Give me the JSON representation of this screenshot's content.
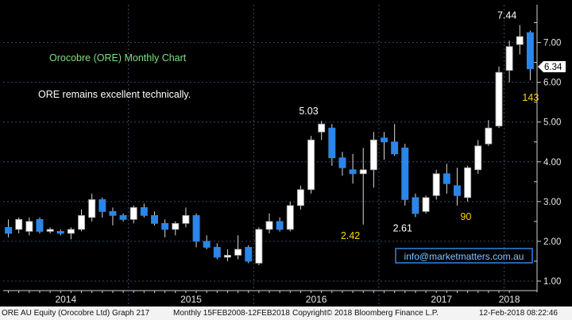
{
  "colors": {
    "background": "#000000",
    "grid": "#3a4a63",
    "axis_text": "#e6e6e6",
    "up_candle_fill": "#ffffff",
    "down_candle_fill": "#2a86e8",
    "wick": "#d8d8d8",
    "title_text": "#7ee081",
    "annotation_white": "#ffffff",
    "annotation_yellow": "#ffd400",
    "last_price_box": "#ffffff",
    "email_box_border": "#2a86e8",
    "email_text": "#7fc4ff"
  },
  "footer": {
    "left": "ORE AU Equity (Orocobre Ltd) Graph 217",
    "middle": "Monthly 15FEB2008-12FEB2018",
    "right": "Copyright© 2018 Bloomberg Finance L.P.",
    "timestamp": "12-Feb-2018 08:22:46"
  },
  "chart_data": {
    "type": "candlestick",
    "title": "Orocobre (ORE) Monthly Chart",
    "subtitle": "ORE remains excellent technically.",
    "email": "info@marketmatters.com.au",
    "xlabel": "",
    "ylabel": "",
    "ylim": [
      0.8,
      7.95
    ],
    "y_ticks": [
      "1.00",
      "2.00",
      "3.00",
      "4.00",
      "5.00",
      "6.00",
      "7.00"
    ],
    "x_years": [
      {
        "label": "2014",
        "start": 0,
        "end": 12
      },
      {
        "label": "2015",
        "start": 12,
        "end": 24
      },
      {
        "label": "2016",
        "start": 24,
        "end": 36
      },
      {
        "label": "2017",
        "start": 36,
        "end": 48
      },
      {
        "label": "2018",
        "start": 48,
        "end": 49
      }
    ],
    "last_price": "6.34",
    "grid": true,
    "candles": [
      {
        "o": 2.35,
        "h": 2.55,
        "l": 2.1,
        "c": 2.2
      },
      {
        "o": 2.3,
        "h": 2.6,
        "l": 2.2,
        "c": 2.55
      },
      {
        "o": 2.25,
        "h": 2.6,
        "l": 2.15,
        "c": 2.5
      },
      {
        "o": 2.55,
        "h": 2.6,
        "l": 2.2,
        "c": 2.25
      },
      {
        "o": 2.25,
        "h": 2.35,
        "l": 2.2,
        "c": 2.3
      },
      {
        "o": 2.25,
        "h": 2.3,
        "l": 2.15,
        "c": 2.2
      },
      {
        "o": 2.2,
        "h": 2.35,
        "l": 2.05,
        "c": 2.3
      },
      {
        "o": 2.3,
        "h": 2.8,
        "l": 2.25,
        "c": 2.65
      },
      {
        "o": 2.6,
        "h": 3.2,
        "l": 2.5,
        "c": 3.05
      },
      {
        "o": 3.05,
        "h": 3.1,
        "l": 2.6,
        "c": 2.75
      },
      {
        "o": 2.75,
        "h": 2.85,
        "l": 2.4,
        "c": 2.65
      },
      {
        "o": 2.65,
        "h": 2.7,
        "l": 2.5,
        "c": 2.55
      },
      {
        "o": 2.55,
        "h": 2.9,
        "l": 2.45,
        "c": 2.85
      },
      {
        "o": 2.85,
        "h": 2.95,
        "l": 2.6,
        "c": 2.65
      },
      {
        "o": 2.65,
        "h": 2.75,
        "l": 2.4,
        "c": 2.45
      },
      {
        "o": 2.45,
        "h": 2.55,
        "l": 2.1,
        "c": 2.3
      },
      {
        "o": 2.3,
        "h": 2.5,
        "l": 2.15,
        "c": 2.45
      },
      {
        "o": 2.45,
        "h": 2.85,
        "l": 2.35,
        "c": 2.65
      },
      {
        "o": 2.65,
        "h": 2.7,
        "l": 1.85,
        "c": 2.0
      },
      {
        "o": 2.0,
        "h": 2.15,
        "l": 1.8,
        "c": 1.85
      },
      {
        "o": 1.85,
        "h": 1.95,
        "l": 1.55,
        "c": 1.6
      },
      {
        "o": 1.6,
        "h": 1.8,
        "l": 1.5,
        "c": 1.65
      },
      {
        "o": 1.65,
        "h": 2.15,
        "l": 1.55,
        "c": 1.8
      },
      {
        "o": 1.85,
        "h": 1.9,
        "l": 1.45,
        "c": 1.5
      },
      {
        "o": 1.45,
        "h": 2.35,
        "l": 1.4,
        "c": 2.3
      },
      {
        "o": 2.3,
        "h": 2.7,
        "l": 2.2,
        "c": 2.5
      },
      {
        "o": 2.5,
        "h": 2.6,
        "l": 2.25,
        "c": 2.3
      },
      {
        "o": 2.3,
        "h": 3.0,
        "l": 2.25,
        "c": 2.9
      },
      {
        "o": 2.9,
        "h": 3.4,
        "l": 2.8,
        "c": 3.3
      },
      {
        "o": 3.3,
        "h": 4.65,
        "l": 3.2,
        "c": 4.55
      },
      {
        "o": 4.75,
        "h": 5.03,
        "l": 4.55,
        "c": 4.95
      },
      {
        "o": 4.85,
        "h": 4.95,
        "l": 3.9,
        "c": 4.1
      },
      {
        "o": 4.1,
        "h": 4.25,
        "l": 3.65,
        "c": 3.85
      },
      {
        "o": 3.8,
        "h": 4.2,
        "l": 3.45,
        "c": 3.7
      },
      {
        "o": 3.7,
        "h": 4.35,
        "l": 2.42,
        "c": 3.8
      },
      {
        "o": 3.8,
        "h": 4.75,
        "l": 3.35,
        "c": 4.55
      },
      {
        "o": 4.6,
        "h": 4.75,
        "l": 4.05,
        "c": 4.5
      },
      {
        "o": 4.5,
        "h": 4.95,
        "l": 4.15,
        "c": 4.2
      },
      {
        "o": 4.35,
        "h": 4.45,
        "l": 2.9,
        "c": 3.05
      },
      {
        "o": 3.1,
        "h": 3.2,
        "l": 2.61,
        "c": 2.7
      },
      {
        "o": 2.75,
        "h": 3.15,
        "l": 2.7,
        "c": 3.1
      },
      {
        "o": 3.15,
        "h": 3.8,
        "l": 3.05,
        "c": 3.7
      },
      {
        "o": 3.7,
        "h": 3.95,
        "l": 3.2,
        "c": 3.45
      },
      {
        "o": 3.4,
        "h": 3.85,
        "l": 2.9,
        "c": 3.15
      },
      {
        "o": 3.1,
        "h": 3.9,
        "l": 3.0,
        "c": 3.85
      },
      {
        "o": 3.8,
        "h": 4.55,
        "l": 3.7,
        "c": 4.4
      },
      {
        "o": 4.45,
        "h": 5.05,
        "l": 4.4,
        "c": 4.85
      },
      {
        "o": 4.9,
        "h": 6.4,
        "l": 4.85,
        "c": 6.25
      },
      {
        "o": 6.3,
        "h": 7.05,
        "l": 6.0,
        "c": 6.9
      },
      {
        "o": 6.95,
        "h": 7.44,
        "l": 6.7,
        "c": 7.15
      },
      {
        "o": 7.25,
        "h": 7.3,
        "l": 6.05,
        "c": 6.34
      }
    ],
    "annotations": [
      {
        "text": "7.44",
        "x": 49,
        "y": 7.44,
        "color": "white",
        "pos": "above-left"
      },
      {
        "text": "5.03",
        "x": 30,
        "y": 5.03,
        "color": "white",
        "pos": "above-left"
      },
      {
        "text": "2.42",
        "x": 34,
        "y": 2.42,
        "color": "yellow",
        "pos": "below-left"
      },
      {
        "text": "2.61",
        "x": 39,
        "y": 2.61,
        "color": "white",
        "pos": "below-left"
      },
      {
        "text": "90",
        "x": 43,
        "y": 2.9,
        "color": "yellow",
        "pos": "below-right"
      },
      {
        "text": "143",
        "x": 50,
        "y": 6.05,
        "color": "yellow",
        "pos": "below-right"
      }
    ]
  }
}
